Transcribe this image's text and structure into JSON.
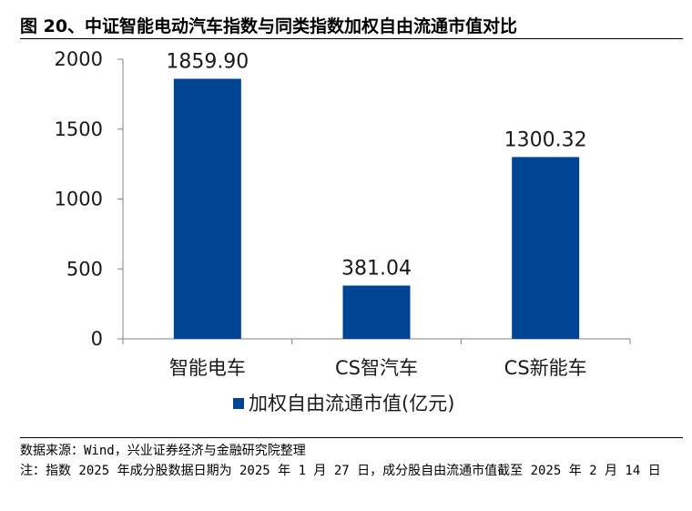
{
  "figure": {
    "title": "图 20、中证智能电动汽车指数与同类指数加权自由流通市值对比",
    "source": "数据来源：Wind，兴业证券经济与金融研究院整理",
    "note": "注：指数 2025 年成分股数据日期为 2025 年 1 月 27 日，成分股自由流通市值截至 2025 年 2 月 14 日"
  },
  "chart_data": {
    "type": "bar",
    "title": "图 20、中证智能电动汽车指数与同类指数加权自由流通市值对比",
    "categories": [
      "智能电车",
      "CS智汽车",
      "CS新能车"
    ],
    "series": [
      {
        "name": "加权自由流通市值(亿元)",
        "values": [
          1859.9,
          381.04,
          1300.32
        ],
        "color": "#004494"
      }
    ],
    "value_labels": [
      "1859.90",
      "381.04",
      "1300.32"
    ],
    "ylim": [
      0,
      2000
    ],
    "yticks": [
      0,
      500,
      1000,
      1500,
      2000
    ],
    "xlabel": "",
    "ylabel": "",
    "grid": false,
    "legend_position": "bottom-center"
  }
}
